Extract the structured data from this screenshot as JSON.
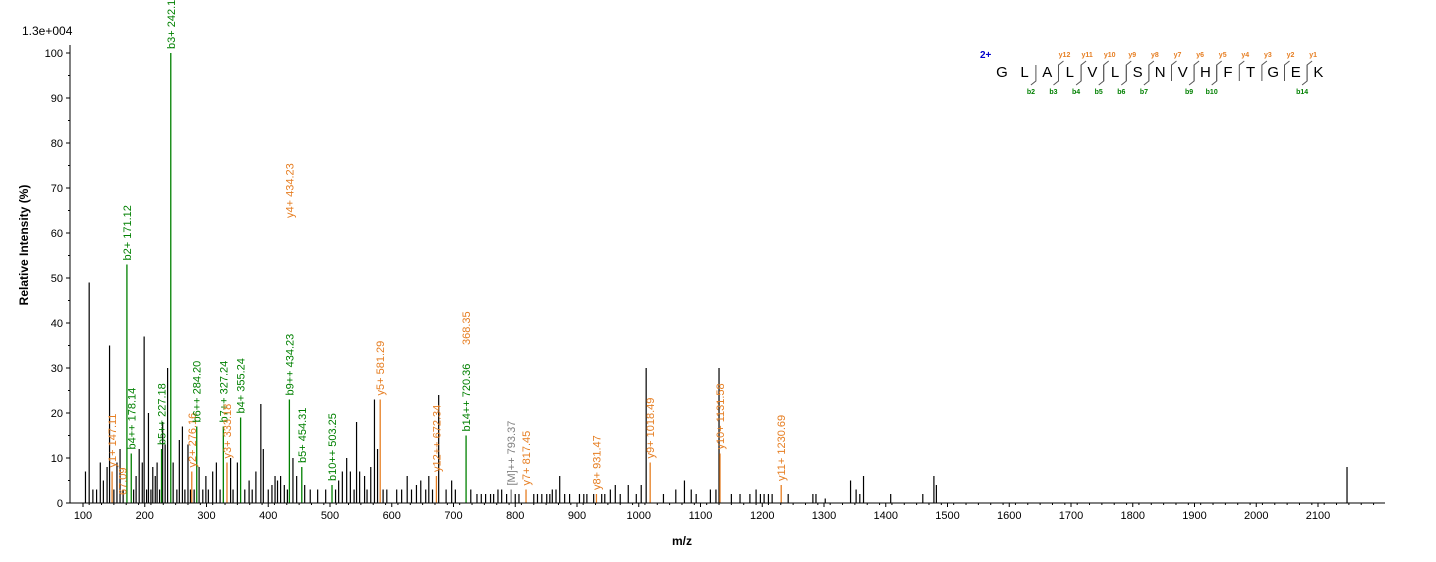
{
  "chart_data": {
    "type": "bar",
    "scale_label": "1.3e+004",
    "xlabel": "m/z",
    "ylabel": "Relative   Intensity (%)",
    "xlim": [
      90,
      2205
    ],
    "ylim": [
      0,
      101
    ],
    "x_ticks": [
      100,
      200,
      300,
      400,
      500,
      600,
      700,
      800,
      900,
      1000,
      1100,
      1200,
      1300,
      1400,
      1500,
      1600,
      1700,
      1800,
      1900,
      2000,
      2100
    ],
    "y_ticks": [
      0,
      10,
      20,
      30,
      40,
      50,
      60,
      70,
      80,
      90,
      100
    ],
    "grid": false,
    "colors": {
      "b_ion": "#008000",
      "y_ion": "#e67e22",
      "other_ion": "#808080",
      "unassigned": "#000000",
      "charge": "#0000cc"
    },
    "peaks_annotated": [
      {
        "mz": 147.11,
        "intensity": 7,
        "ion": "y",
        "label": "y1+ 147.11"
      },
      {
        "mz": 171.12,
        "intensity": 53,
        "ion": "b",
        "label": "b2+ 171.12"
      },
      {
        "mz": 178.14,
        "intensity": 11,
        "ion": "b",
        "label": "b4++ 178.14"
      },
      {
        "mz": 227.18,
        "intensity": 12,
        "ion": "b",
        "label": "b5++ 227.18"
      },
      {
        "mz": 242.15,
        "intensity": 100,
        "ion": "b",
        "label": "b3+ 242.15"
      },
      {
        "mz": 276.16,
        "intensity": 7,
        "ion": "y",
        "label": "y2+ 276.16"
      },
      {
        "mz": 284.2,
        "intensity": 17,
        "ion": "b",
        "label": "b6++ 284.20"
      },
      {
        "mz": 327.24,
        "intensity": 17,
        "ion": "b",
        "label": "b7++ 327.24"
      },
      {
        "mz": 333.18,
        "intensity": 9,
        "ion": "y",
        "label": "y3+ 333.18"
      },
      {
        "mz": 355.24,
        "intensity": 19,
        "ion": "b",
        "label": "b4+ 355.24"
      },
      {
        "mz": 434.23,
        "intensity": 23,
        "ion": "b",
        "label": "b9++ 434.23"
      },
      {
        "mz": 454.31,
        "intensity": 8,
        "ion": "b",
        "label": "b5+ 454.31"
      },
      {
        "mz": 503.25,
        "intensity": 4,
        "ion": "b",
        "label": "b10++ 503.25"
      },
      {
        "mz": 581.29,
        "intensity": 23,
        "ion": "y",
        "label": "y5+ 581.29"
      },
      {
        "mz": 672.34,
        "intensity": 6,
        "ion": "y",
        "label": "y12++ 672.34"
      },
      {
        "mz": 720.36,
        "intensity": 15,
        "ion": "b",
        "label": "b14++ 720.36"
      },
      {
        "mz": 793.37,
        "intensity": 3,
        "ion": "other",
        "label": "[M]++ 793.37"
      },
      {
        "mz": 817.45,
        "intensity": 3,
        "ion": "y",
        "label": "y7+ 817.45"
      },
      {
        "mz": 931.47,
        "intensity": 2,
        "ion": "y",
        "label": "y8+ 931.47"
      },
      {
        "mz": 1018.49,
        "intensity": 9,
        "ion": "y",
        "label": "y9+ 1018.49"
      },
      {
        "mz": 1131.58,
        "intensity": 11,
        "ion": "y",
        "label": "y10+ 1131.58"
      },
      {
        "mz": 1230.69,
        "intensity": 4,
        "ion": "y",
        "label": "y11+ 1230.69"
      }
    ],
    "overlapping_labels": [
      {
        "mz": 434.23,
        "ion": "y",
        "label": "y4+ 434.23"
      },
      {
        "mz": 720.36,
        "ion": "y",
        "label": "368.35"
      },
      {
        "mz": 164.09,
        "ion": "y",
        "label": "67.09"
      }
    ],
    "peaks_unassigned": [
      [
        104,
        7
      ],
      [
        110,
        49
      ],
      [
        116,
        3
      ],
      [
        122,
        3
      ],
      [
        128,
        9
      ],
      [
        133,
        5
      ],
      [
        139,
        8
      ],
      [
        143,
        35
      ],
      [
        150,
        3
      ],
      [
        155,
        9
      ],
      [
        160,
        12
      ],
      [
        165,
        3
      ],
      [
        182,
        3
      ],
      [
        186,
        6
      ],
      [
        191,
        12
      ],
      [
        196,
        9
      ],
      [
        199,
        37
      ],
      [
        203,
        3
      ],
      [
        206,
        20
      ],
      [
        210,
        3
      ],
      [
        213,
        8
      ],
      [
        217,
        6
      ],
      [
        220,
        9
      ],
      [
        224,
        3
      ],
      [
        229,
        18
      ],
      [
        233,
        13
      ],
      [
        237,
        30
      ],
      [
        246,
        9
      ],
      [
        252,
        3
      ],
      [
        256,
        14
      ],
      [
        261,
        17
      ],
      [
        265,
        3
      ],
      [
        270,
        13
      ],
      [
        274,
        3
      ],
      [
        280,
        3
      ],
      [
        288,
        8
      ],
      [
        294,
        3
      ],
      [
        299,
        6
      ],
      [
        303,
        3
      ],
      [
        310,
        7
      ],
      [
        316,
        9
      ],
      [
        322,
        3
      ],
      [
        339,
        10
      ],
      [
        343,
        3
      ],
      [
        350,
        9
      ],
      [
        362,
        3
      ],
      [
        369,
        5
      ],
      [
        374,
        3
      ],
      [
        380,
        7
      ],
      [
        388,
        22
      ],
      [
        392,
        12
      ],
      [
        400,
        3
      ],
      [
        406,
        4
      ],
      [
        411,
        6
      ],
      [
        415,
        5
      ],
      [
        420,
        6
      ],
      [
        426,
        4
      ],
      [
        431,
        3
      ],
      [
        440,
        10
      ],
      [
        446,
        6
      ],
      [
        459,
        4
      ],
      [
        468,
        3
      ],
      [
        480,
        3
      ],
      [
        493,
        3
      ],
      [
        509,
        3
      ],
      [
        514,
        5
      ],
      [
        520,
        7
      ],
      [
        527,
        10
      ],
      [
        533,
        7
      ],
      [
        539,
        3
      ],
      [
        543,
        18
      ],
      [
        548,
        7
      ],
      [
        556,
        6
      ],
      [
        560,
        3
      ],
      [
        566,
        8
      ],
      [
        572,
        23
      ],
      [
        577,
        12
      ],
      [
        586,
        3
      ],
      [
        592,
        3
      ],
      [
        608,
        3
      ],
      [
        616,
        3
      ],
      [
        625,
        6
      ],
      [
        632,
        3
      ],
      [
        640,
        4
      ],
      [
        647,
        5
      ],
      [
        655,
        3
      ],
      [
        660,
        6
      ],
      [
        666,
        3
      ],
      [
        676,
        24
      ],
      [
        688,
        3
      ],
      [
        697,
        5
      ],
      [
        703,
        3
      ],
      [
        728,
        3
      ],
      [
        738,
        2
      ],
      [
        745,
        2
      ],
      [
        752,
        2
      ],
      [
        760,
        2
      ],
      [
        765,
        2
      ],
      [
        772,
        3
      ],
      [
        778,
        3
      ],
      [
        786,
        2
      ],
      [
        800,
        2
      ],
      [
        806,
        2
      ],
      [
        830,
        2
      ],
      [
        836,
        2
      ],
      [
        843,
        2
      ],
      [
        851,
        2
      ],
      [
        856,
        2
      ],
      [
        860,
        3
      ],
      [
        866,
        3
      ],
      [
        872,
        6
      ],
      [
        880,
        2
      ],
      [
        888,
        2
      ],
      [
        904,
        2
      ],
      [
        911,
        2
      ],
      [
        916,
        2
      ],
      [
        927,
        2
      ],
      [
        940,
        2
      ],
      [
        945,
        2
      ],
      [
        954,
        3
      ],
      [
        962,
        4
      ],
      [
        970,
        2
      ],
      [
        983,
        4
      ],
      [
        996,
        2
      ],
      [
        1004,
        4
      ],
      [
        1012,
        30
      ],
      [
        1040,
        2
      ],
      [
        1060,
        3
      ],
      [
        1074,
        5
      ],
      [
        1085,
        3
      ],
      [
        1093,
        2
      ],
      [
        1116,
        3
      ],
      [
        1125,
        3
      ],
      [
        1130,
        30
      ],
      [
        1150,
        2
      ],
      [
        1164,
        2
      ],
      [
        1180,
        2
      ],
      [
        1190,
        3
      ],
      [
        1197,
        2
      ],
      [
        1203,
        2
      ],
      [
        1210,
        2
      ],
      [
        1216,
        2
      ],
      [
        1242,
        2
      ],
      [
        1282,
        2
      ],
      [
        1287,
        2
      ],
      [
        1302,
        1
      ],
      [
        1343,
        5
      ],
      [
        1352,
        3
      ],
      [
        1358,
        2
      ],
      [
        1364,
        6
      ],
      [
        1408,
        2
      ],
      [
        1460,
        2
      ],
      [
        1478,
        6
      ],
      [
        1482,
        4
      ],
      [
        2147,
        8
      ]
    ],
    "sequence": {
      "charge_label": "2+",
      "residues": [
        "G",
        "L",
        "A",
        "L",
        "V",
        "L",
        "S",
        "N",
        "V",
        "H",
        "F",
        "T",
        "G",
        "E",
        "K"
      ],
      "b_ions": [
        {
          "after": 2,
          "label": "b2"
        },
        {
          "after": 3,
          "label": "b3"
        },
        {
          "after": 4,
          "label": "b4"
        },
        {
          "after": 5,
          "label": "b5"
        },
        {
          "after": 6,
          "label": "b6"
        },
        {
          "after": 7,
          "label": "b7"
        },
        {
          "after": 9,
          "label": "b9"
        },
        {
          "after": 10,
          "label": "b10"
        },
        {
          "after": 14,
          "label": "b14"
        }
      ],
      "y_ions": [
        {
          "after": 3,
          "label": "y12"
        },
        {
          "after": 4,
          "label": "y11"
        },
        {
          "after": 5,
          "label": "y10"
        },
        {
          "after": 6,
          "label": "y9"
        },
        {
          "after": 7,
          "label": "y8"
        },
        {
          "after": 8,
          "label": "y7"
        },
        {
          "after": 9,
          "label": "y6"
        },
        {
          "after": 10,
          "label": "y5"
        },
        {
          "after": 11,
          "label": "y4"
        },
        {
          "after": 12,
          "label": "y3"
        },
        {
          "after": 13,
          "label": "y2"
        },
        {
          "after": 14,
          "label": "y1"
        }
      ]
    }
  }
}
